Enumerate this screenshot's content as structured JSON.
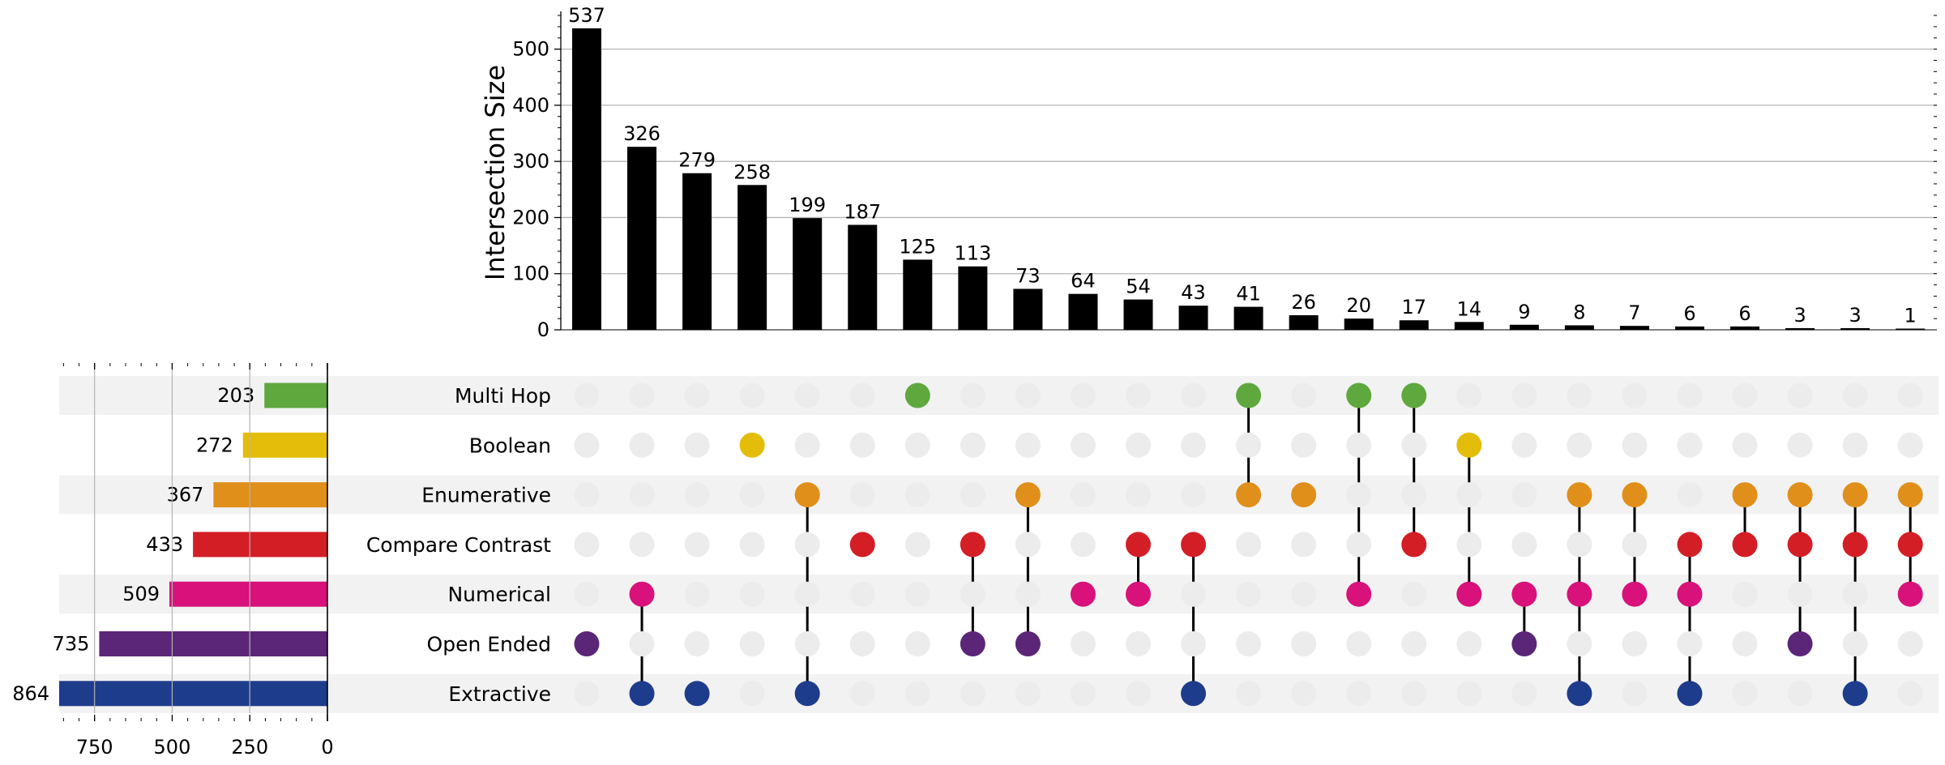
{
  "chart_data": {
    "type": "bar",
    "subtype": "upset",
    "title": "",
    "ylabel": "Intersection Size",
    "ylim": [
      0,
      560
    ],
    "yticks": [
      0,
      100,
      200,
      300,
      400,
      500
    ],
    "grid": true,
    "sets": [
      {
        "name": "Multi Hop",
        "size": 203,
        "color": "#5ea83e"
      },
      {
        "name": "Boolean",
        "size": 272,
        "color": "#e3bd0a"
      },
      {
        "name": "Enumerative",
        "size": 367,
        "color": "#e08f1b"
      },
      {
        "name": "Compare Contrast",
        "size": 433,
        "color": "#d41e26"
      },
      {
        "name": "Numerical",
        "size": 509,
        "color": "#d8117b"
      },
      {
        "name": "Open Ended",
        "size": 735,
        "color": "#5b2677"
      },
      {
        "name": "Extractive",
        "size": 864,
        "color": "#1e3c8c"
      }
    ],
    "set_size_axis": {
      "ticks": [
        750,
        500,
        250,
        0
      ],
      "xlim": [
        0,
        864
      ]
    },
    "intersections": [
      {
        "size": 537,
        "sets": [
          "Open Ended"
        ]
      },
      {
        "size": 326,
        "sets": [
          "Numerical",
          "Extractive"
        ]
      },
      {
        "size": 279,
        "sets": [
          "Extractive"
        ]
      },
      {
        "size": 258,
        "sets": [
          "Boolean"
        ]
      },
      {
        "size": 199,
        "sets": [
          "Enumerative",
          "Extractive"
        ]
      },
      {
        "size": 187,
        "sets": [
          "Compare Contrast"
        ]
      },
      {
        "size": 125,
        "sets": [
          "Multi Hop"
        ]
      },
      {
        "size": 113,
        "sets": [
          "Compare Contrast",
          "Open Ended"
        ]
      },
      {
        "size": 73,
        "sets": [
          "Enumerative",
          "Open Ended"
        ]
      },
      {
        "size": 64,
        "sets": [
          "Numerical"
        ]
      },
      {
        "size": 54,
        "sets": [
          "Compare Contrast",
          "Numerical"
        ]
      },
      {
        "size": 43,
        "sets": [
          "Compare Contrast",
          "Extractive"
        ]
      },
      {
        "size": 41,
        "sets": [
          "Multi Hop",
          "Enumerative"
        ]
      },
      {
        "size": 26,
        "sets": [
          "Enumerative"
        ]
      },
      {
        "size": 20,
        "sets": [
          "Multi Hop",
          "Numerical"
        ]
      },
      {
        "size": 17,
        "sets": [
          "Multi Hop",
          "Compare Contrast"
        ]
      },
      {
        "size": 14,
        "sets": [
          "Boolean",
          "Numerical"
        ]
      },
      {
        "size": 9,
        "sets": [
          "Numerical",
          "Open Ended"
        ]
      },
      {
        "size": 8,
        "sets": [
          "Enumerative",
          "Numerical",
          "Extractive"
        ]
      },
      {
        "size": 7,
        "sets": [
          "Enumerative",
          "Numerical"
        ]
      },
      {
        "size": 6,
        "sets": [
          "Compare Contrast",
          "Numerical",
          "Extractive"
        ]
      },
      {
        "size": 6,
        "sets": [
          "Enumerative",
          "Compare Contrast"
        ]
      },
      {
        "size": 3,
        "sets": [
          "Enumerative",
          "Compare Contrast",
          "Open Ended"
        ]
      },
      {
        "size": 3,
        "sets": [
          "Enumerative",
          "Compare Contrast",
          "Extractive"
        ]
      },
      {
        "size": 1,
        "sets": [
          "Enumerative",
          "Compare Contrast",
          "Numerical"
        ]
      }
    ],
    "colors": {
      "bar": "#000000",
      "inactive_dot": "#ececec",
      "stripe": "#f2f2f2",
      "grid": "#b4b4b4"
    }
  }
}
